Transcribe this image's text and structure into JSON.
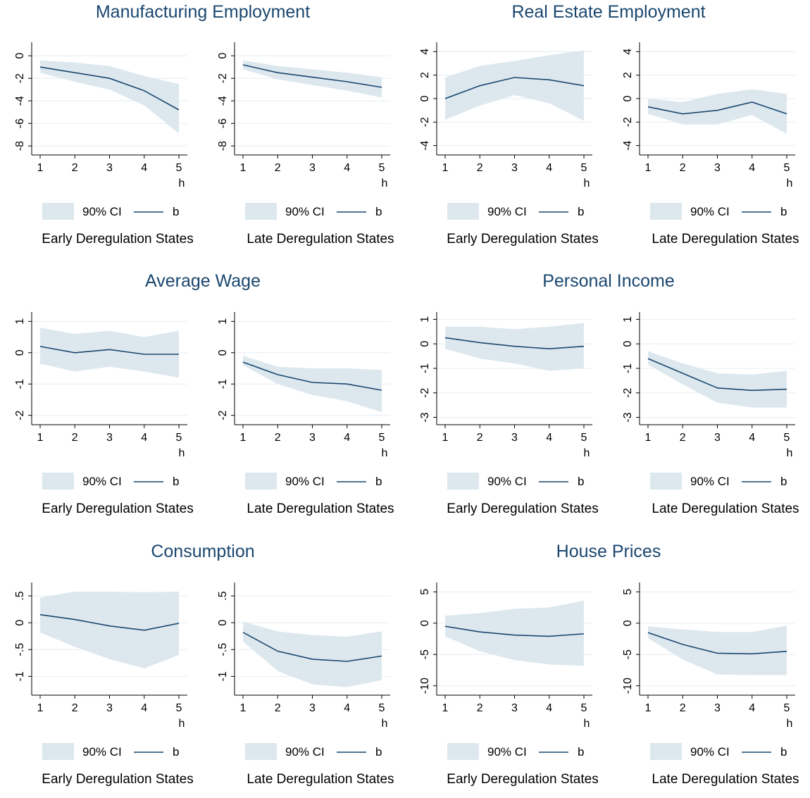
{
  "figure": {
    "colors": {
      "band": "#dde8ee",
      "line": "#1a476f",
      "grid": "#e6edf2",
      "axis": "#000000",
      "title": "#1a476f"
    },
    "groups": [
      {
        "title": "Manufacturing Employment"
      },
      {
        "title": "Real Estate Employment"
      },
      {
        "title": "Average Wage"
      },
      {
        "title": "Personal Income"
      },
      {
        "title": "Consumption"
      },
      {
        "title": "House Prices"
      }
    ]
  },
  "chart_data": [
    {
      "type": "line",
      "group": "Manufacturing Employment",
      "subtitle": "Early Deregulation States",
      "x": [
        1,
        2,
        3,
        4,
        5
      ],
      "xlabel": "h",
      "ylim": [
        -8.8,
        1.2
      ],
      "yticks": [
        0,
        -2,
        -4,
        -6,
        -8
      ],
      "ytick_labels": [
        "0",
        "-2",
        "-4",
        "-6",
        "-8"
      ],
      "series": [
        {
          "name": "b",
          "values": [
            -1.0,
            -1.5,
            -2.0,
            -3.1,
            -4.8
          ]
        },
        {
          "name": "90% CI",
          "lower": [
            -1.5,
            -2.3,
            -3.0,
            -4.4,
            -6.9
          ],
          "upper": [
            -0.4,
            -0.6,
            -0.9,
            -1.8,
            -2.5
          ]
        }
      ],
      "legend": [
        "90% CI",
        "b"
      ],
      "legend_position": "bottom"
    },
    {
      "type": "line",
      "group": "Manufacturing Employment",
      "subtitle": "Late Deregulation States",
      "x": [
        1,
        2,
        3,
        4,
        5
      ],
      "xlabel": "h",
      "ylim": [
        -8.8,
        1.2
      ],
      "yticks": [
        0,
        -2,
        -4,
        -6,
        -8
      ],
      "ytick_labels": [
        "0",
        "-2",
        "-4",
        "-6",
        "-8"
      ],
      "series": [
        {
          "name": "b",
          "values": [
            -0.8,
            -1.5,
            -1.9,
            -2.3,
            -2.8
          ]
        },
        {
          "name": "90% CI",
          "lower": [
            -1.2,
            -2.1,
            -2.6,
            -3.1,
            -3.7
          ],
          "upper": [
            -0.4,
            -0.9,
            -1.2,
            -1.5,
            -1.9
          ]
        }
      ],
      "legend": [
        "90% CI",
        "b"
      ],
      "legend_position": "bottom"
    },
    {
      "type": "line",
      "group": "Real Estate Employment",
      "subtitle": "Early Deregulation States",
      "x": [
        1,
        2,
        3,
        4,
        5
      ],
      "xlabel": "h",
      "ylim": [
        -4.8,
        4.8
      ],
      "yticks": [
        4,
        2,
        0,
        -2,
        -4
      ],
      "ytick_labels": [
        "4",
        "2",
        "0",
        "-2",
        "-4"
      ],
      "series": [
        {
          "name": "b",
          "values": [
            0.0,
            1.1,
            1.8,
            1.6,
            1.1
          ]
        },
        {
          "name": "90% CI",
          "lower": [
            -1.8,
            -0.6,
            0.3,
            -0.4,
            -1.9
          ],
          "upper": [
            1.8,
            2.8,
            3.2,
            3.7,
            4.1
          ]
        }
      ],
      "legend": [
        "90% CI",
        "b"
      ],
      "legend_position": "bottom"
    },
    {
      "type": "line",
      "group": "Real Estate Employment",
      "subtitle": "Late Deregulation States",
      "x": [
        1,
        2,
        3,
        4,
        5
      ],
      "xlabel": "h",
      "ylim": [
        -4.8,
        4.8
      ],
      "yticks": [
        4,
        2,
        0,
        -2,
        -4
      ],
      "ytick_labels": [
        "4",
        "2",
        "0",
        "-2",
        "-4"
      ],
      "series": [
        {
          "name": "b",
          "values": [
            -0.7,
            -1.3,
            -1.0,
            -0.3,
            -1.3
          ]
        },
        {
          "name": "90% CI",
          "lower": [
            -1.3,
            -2.2,
            -2.2,
            -1.4,
            -3.0
          ],
          "upper": [
            0.0,
            -0.3,
            0.4,
            0.8,
            0.4
          ]
        }
      ],
      "legend": [
        "90% CI",
        "b"
      ],
      "legend_position": "bottom"
    },
    {
      "type": "line",
      "group": "Average Wage",
      "subtitle": "Early Deregulation States",
      "x": [
        1,
        2,
        3,
        4,
        5
      ],
      "xlabel": "h",
      "ylim": [
        -2.3,
        1.3
      ],
      "yticks": [
        1,
        0,
        -1,
        -2
      ],
      "ytick_labels": [
        "1",
        "0",
        "-1",
        "-2"
      ],
      "series": [
        {
          "name": "b",
          "values": [
            0.2,
            0.0,
            0.1,
            -0.05,
            -0.05
          ]
        },
        {
          "name": "90% CI",
          "lower": [
            -0.35,
            -0.6,
            -0.45,
            -0.6,
            -0.8
          ],
          "upper": [
            0.8,
            0.6,
            0.7,
            0.5,
            0.7
          ]
        }
      ],
      "legend": [
        "90% CI",
        "b"
      ],
      "legend_position": "bottom"
    },
    {
      "type": "line",
      "group": "Average Wage",
      "subtitle": "Late Deregulation States",
      "x": [
        1,
        2,
        3,
        4,
        5
      ],
      "xlabel": "h",
      "ylim": [
        -2.3,
        1.3
      ],
      "yticks": [
        1,
        0,
        -1,
        -2
      ],
      "ytick_labels": [
        "1",
        "0",
        "-1",
        "-2"
      ],
      "series": [
        {
          "name": "b",
          "values": [
            -0.3,
            -0.7,
            -0.95,
            -1.0,
            -1.2
          ]
        },
        {
          "name": "90% CI",
          "lower": [
            -0.4,
            -1.0,
            -1.35,
            -1.55,
            -1.9
          ],
          "upper": [
            -0.1,
            -0.45,
            -0.5,
            -0.5,
            -0.55
          ]
        }
      ],
      "legend": [
        "90% CI",
        "b"
      ],
      "legend_position": "bottom"
    },
    {
      "type": "line",
      "group": "Personal Income",
      "subtitle": "Early Deregulation States",
      "x": [
        1,
        2,
        3,
        4,
        5
      ],
      "xlabel": "h",
      "ylim": [
        -3.3,
        1.3
      ],
      "yticks": [
        1,
        0,
        -1,
        -2,
        -3
      ],
      "ytick_labels": [
        "1",
        "0",
        "-1",
        "-2",
        "-3"
      ],
      "series": [
        {
          "name": "b",
          "values": [
            0.25,
            0.05,
            -0.1,
            -0.2,
            -0.1
          ]
        },
        {
          "name": "90% CI",
          "lower": [
            -0.2,
            -0.6,
            -0.8,
            -1.1,
            -1.0
          ],
          "upper": [
            0.7,
            0.7,
            0.6,
            0.7,
            0.85
          ]
        }
      ],
      "legend": [
        "90% CI",
        "b"
      ],
      "legend_position": "bottom"
    },
    {
      "type": "line",
      "group": "Personal Income",
      "subtitle": "Late Deregulation States",
      "x": [
        1,
        2,
        3,
        4,
        5
      ],
      "xlabel": "h",
      "ylim": [
        -3.3,
        1.3
      ],
      "yticks": [
        1,
        0,
        -1,
        -2,
        -3
      ],
      "ytick_labels": [
        "1",
        "0",
        "-1",
        "-2",
        "-3"
      ],
      "series": [
        {
          "name": "b",
          "values": [
            -0.6,
            -1.2,
            -1.8,
            -1.9,
            -1.85
          ]
        },
        {
          "name": "90% CI",
          "lower": [
            -0.85,
            -1.65,
            -2.4,
            -2.6,
            -2.6
          ],
          "upper": [
            -0.3,
            -0.8,
            -1.2,
            -1.25,
            -1.1
          ]
        }
      ],
      "legend": [
        "90% CI",
        "b"
      ],
      "legend_position": "bottom"
    },
    {
      "type": "line",
      "group": "Consumption",
      "subtitle": "Early Deregulation States",
      "x": [
        1,
        2,
        3,
        4,
        5
      ],
      "xlabel": "h",
      "ylim": [
        -1.35,
        0.75
      ],
      "yticks": [
        0.5,
        0,
        -0.5,
        -1
      ],
      "ytick_labels": [
        ".5",
        "0",
        "-.5",
        "-1"
      ],
      "series": [
        {
          "name": "b",
          "values": [
            0.15,
            0.06,
            -0.06,
            -0.14,
            -0.01
          ]
        },
        {
          "name": "90% CI",
          "lower": [
            -0.18,
            -0.45,
            -0.68,
            -0.85,
            -0.6
          ],
          "upper": [
            0.47,
            0.58,
            0.58,
            0.57,
            0.58
          ]
        }
      ],
      "legend": [
        "90% CI",
        "b"
      ],
      "legend_position": "bottom"
    },
    {
      "type": "line",
      "group": "Consumption",
      "subtitle": "Late Deregulation States",
      "x": [
        1,
        2,
        3,
        4,
        5
      ],
      "xlabel": "h",
      "ylim": [
        -1.35,
        0.75
      ],
      "yticks": [
        0.5,
        0,
        -0.5,
        -1
      ],
      "ytick_labels": [
        ".5",
        "0",
        "-.5",
        "-1"
      ],
      "series": [
        {
          "name": "b",
          "values": [
            -0.18,
            -0.53,
            -0.68,
            -0.72,
            -0.62
          ]
        },
        {
          "name": "90% CI",
          "lower": [
            -0.35,
            -0.9,
            -1.15,
            -1.2,
            -1.07
          ],
          "upper": [
            0.02,
            -0.16,
            -0.23,
            -0.26,
            -0.16
          ]
        }
      ],
      "legend": [
        "90% CI",
        "b"
      ],
      "legend_position": "bottom"
    },
    {
      "type": "line",
      "group": "House Prices",
      "subtitle": "Early Deregulation States",
      "x": [
        1,
        2,
        3,
        4,
        5
      ],
      "xlabel": "h",
      "ylim": [
        -11.5,
        6.5
      ],
      "yticks": [
        5,
        0,
        -5,
        -10
      ],
      "ytick_labels": [
        "5",
        "0",
        "-5",
        "-10"
      ],
      "series": [
        {
          "name": "b",
          "values": [
            -0.5,
            -1.4,
            -1.9,
            -2.1,
            -1.7
          ]
        },
        {
          "name": "90% CI",
          "lower": [
            -2.1,
            -4.5,
            -5.9,
            -6.6,
            -6.8
          ],
          "upper": [
            1.2,
            1.6,
            2.3,
            2.5,
            3.6
          ]
        }
      ],
      "legend": [
        "90% CI",
        "b"
      ],
      "legend_position": "bottom"
    },
    {
      "type": "line",
      "group": "House Prices",
      "subtitle": "Late Deregulation States",
      "x": [
        1,
        2,
        3,
        4,
        5
      ],
      "xlabel": "h",
      "ylim": [
        -11.5,
        6.5
      ],
      "yticks": [
        5,
        0,
        -5,
        -10
      ],
      "ytick_labels": [
        "5",
        "0",
        "-5",
        "-10"
      ],
      "series": [
        {
          "name": "b",
          "values": [
            -1.5,
            -3.4,
            -4.8,
            -4.9,
            -4.5
          ]
        },
        {
          "name": "90% CI",
          "lower": [
            -2.4,
            -5.8,
            -8.2,
            -8.3,
            -8.3
          ],
          "upper": [
            -0.5,
            -1.0,
            -1.4,
            -1.4,
            -0.4
          ]
        }
      ],
      "legend": [
        "90% CI",
        "b"
      ],
      "legend_position": "bottom"
    }
  ]
}
